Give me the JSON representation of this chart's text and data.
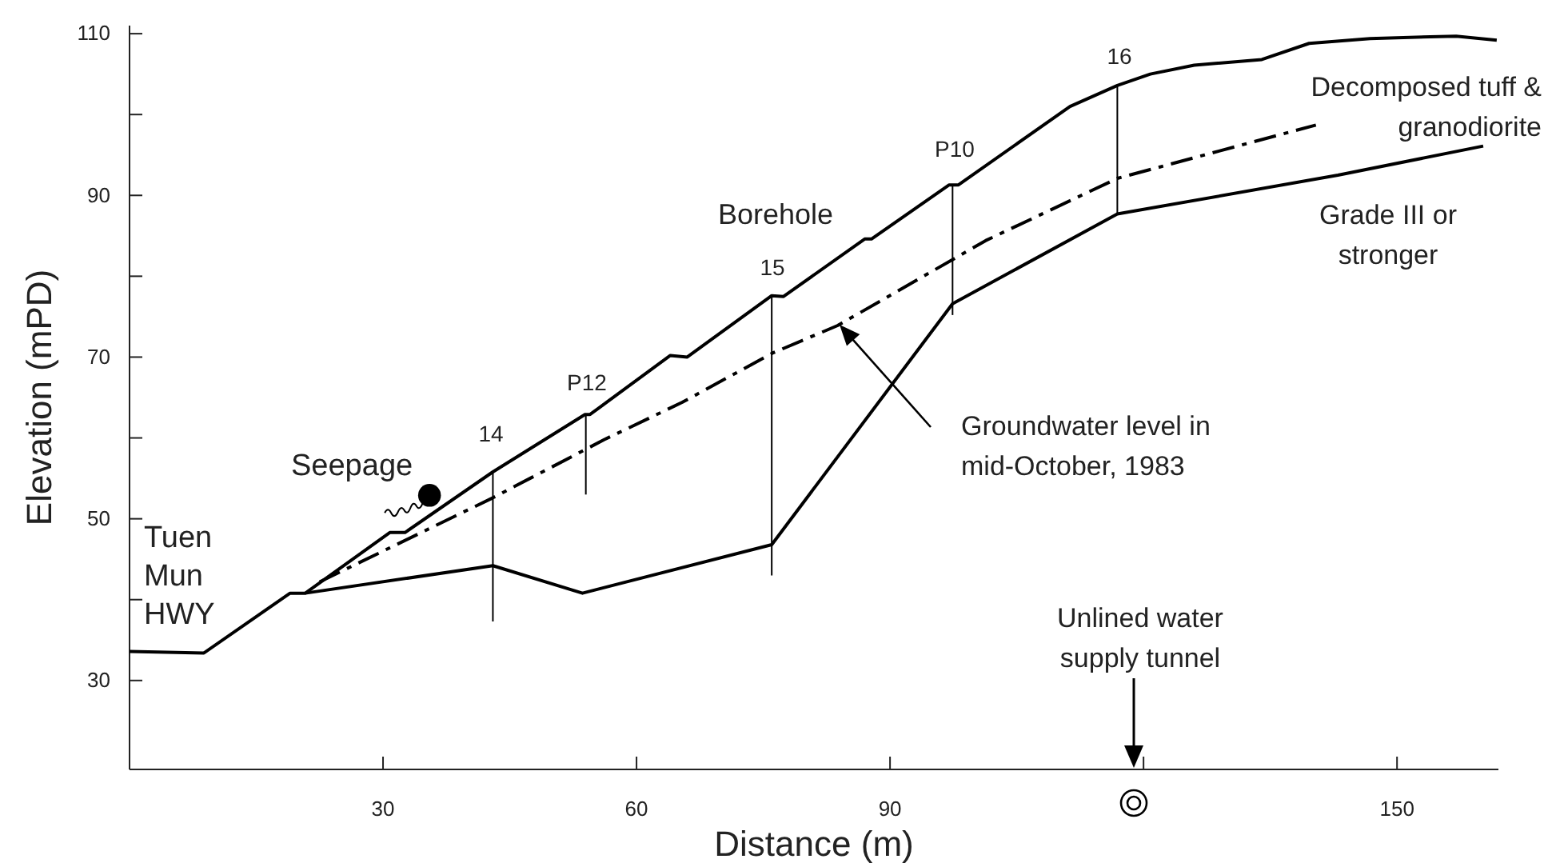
{
  "chart_data": {
    "type": "line",
    "xlabel": "Distance (m)",
    "ylabel": "Elevation (mPD)",
    "xlim": [
      0,
      162
    ],
    "ylim": [
      19,
      111
    ],
    "xticks": [
      30,
      60,
      90,
      {
        "value": 120,
        "label": null
      },
      150
    ],
    "yticks": [
      {
        "value": 30,
        "label": "30"
      },
      {
        "value": 40,
        "label": null
      },
      {
        "value": 50,
        "label": "50"
      },
      {
        "value": 60,
        "label": null
      },
      {
        "value": 70,
        "label": "70"
      },
      {
        "value": 80,
        "label": null
      },
      {
        "value": 90,
        "label": "90"
      },
      {
        "value": 100,
        "label": null
      },
      {
        "value": 110,
        "label": "110"
      }
    ],
    "series": [
      {
        "color": "#000000",
        "line_style": "solid",
        "x": [
          0,
          8.8,
          19,
          20.8,
          30.8,
          32.6,
          43,
          53.9,
          54.5,
          64,
          66,
          76,
          77.4,
          87,
          87.8,
          97,
          98.1,
          111.3,
          116.9,
          120.8,
          126,
          134,
          139.6,
          146.8,
          157,
          161.8
        ],
        "values": [
          33.6,
          33.4,
          40.8,
          40.8,
          48.3,
          48.3,
          55.8,
          62.9,
          62.9,
          70.2,
          70,
          77.6,
          77.5,
          84.6,
          84.6,
          91.3,
          91.3,
          101,
          103.6,
          105,
          106.1,
          106.8,
          108.8,
          109.4,
          109.7,
          109.2
        ]
      },
      {
        "color": "#000000",
        "line_style": "solid",
        "x": [
          20.8,
          43,
          53.6,
          76,
          97.4,
          116.9,
          143,
          160.2
        ],
        "values": [
          40.8,
          44.2,
          40.8,
          46.8,
          76.6,
          87.7,
          92.5,
          96.1
        ]
      },
      {
        "type": "line",
        "color": "#000000",
        "line_style": "dashed",
        "x": [
          22.5,
          43,
          56.2,
          65.4,
          76.1,
          83.8,
          101.3,
          116.9,
          140.4
        ],
        "values": [
          42.2,
          52.6,
          59.8,
          64.4,
          70.5,
          73.9,
          84.4,
          92.1,
          98.7
        ]
      },
      {
        "type": "line",
        "color": "#000000",
        "line_style": "solid",
        "x": [
          43,
          43
        ],
        "values": [
          55.8,
          37.3
        ]
      },
      {
        "type": "line",
        "color": "#000000",
        "line_style": "solid",
        "x": [
          54,
          54
        ],
        "values": [
          62.9,
          53
        ]
      },
      {
        "type": "line",
        "color": "#000000",
        "line_style": "solid",
        "x": [
          76,
          76
        ],
        "values": [
          77.6,
          43
        ]
      },
      {
        "type": "line",
        "color": "#000000",
        "line_style": "solid",
        "x": [
          97.4,
          97.4
        ],
        "values": [
          91.3,
          75.2
        ]
      },
      {
        "type": "line",
        "color": "#000000",
        "line_style": "solid",
        "x": [
          116.9,
          116.9
        ],
        "values": [
          103.6,
          87.7
        ]
      },
      {
        "type": "scatter",
        "color": "#000000",
        "marker": "circle",
        "x": [
          35.5
        ],
        "values": [
          52.9
        ]
      }
    ],
    "annotations": [
      "Tuen\nMun\nHWY",
      "Seepage",
      "Borehole",
      "14",
      "P12",
      "15",
      "P10",
      "16",
      "Decomposed tuff &\ngranodiorite",
      "Grade III or\nstronger",
      "Groundwater level in\nmid-October, 1983",
      "Unlined water\nsupply tunnel"
    ]
  }
}
